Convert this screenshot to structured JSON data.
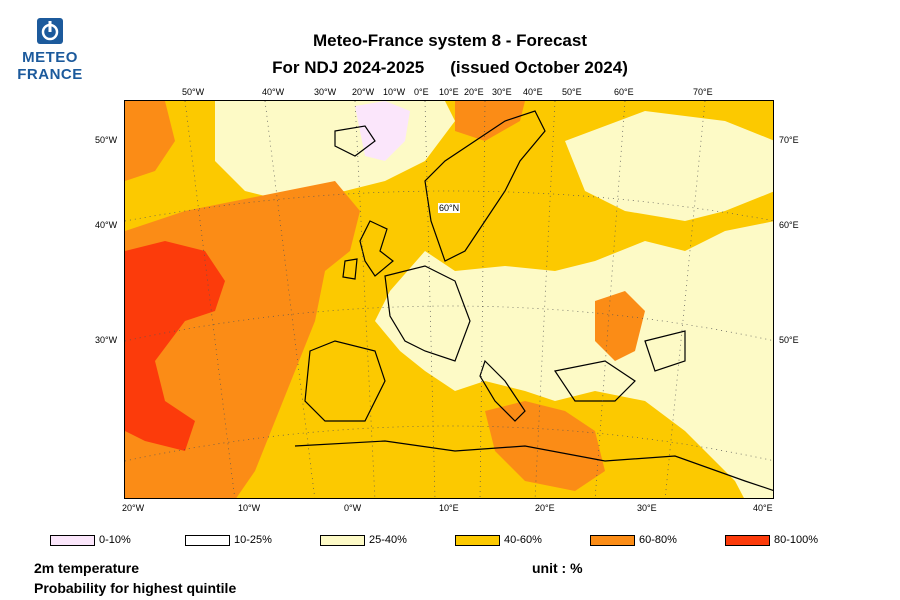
{
  "logo": {
    "line1": "METEO",
    "line2": "FRANCE"
  },
  "header": {
    "title": "Meteo-France system 8  -  Forecast",
    "period": "For NDJ 2024-2025",
    "issued": "(issued October 2024)"
  },
  "map": {
    "inner_label": "60°N",
    "top_ticks": [
      "50°W",
      "40°W",
      "30°W",
      "20°W",
      "10°W",
      "0°E",
      "10°E",
      "20°E",
      "30°E",
      "40°E",
      "50°E",
      "60°E",
      "70°E"
    ],
    "bottom_ticks": [
      "20°W",
      "10°W",
      "0°W",
      "10°E",
      "20°E",
      "30°E",
      "40°E"
    ],
    "left_ticks": [
      "50°W",
      "40°W",
      "30°W"
    ],
    "right_ticks": [
      "70°E",
      "60°E",
      "50°E"
    ],
    "colors": {
      "ocean_base": "#fcc900",
      "land_base": "#fdfac6",
      "p60_80": "#fb8c16",
      "p80_100": "#fc3b0b",
      "p0_10": "#fbe6fb",
      "coast": "#000000"
    }
  },
  "legend": [
    {
      "label": "0-10%",
      "color": "#fbe6fb"
    },
    {
      "label": "10-25%",
      "color": "#ffffff"
    },
    {
      "label": "25-40%",
      "color": "#fdfac6"
    },
    {
      "label": "40-60%",
      "color": "#fcc900"
    },
    {
      "label": "60-80%",
      "color": "#fb8c16"
    },
    {
      "label": "80-100%",
      "color": "#fc3b0b"
    }
  ],
  "footer": {
    "variable": "2m temperature",
    "description": "Probability for highest quintile",
    "unit": "unit : %"
  }
}
